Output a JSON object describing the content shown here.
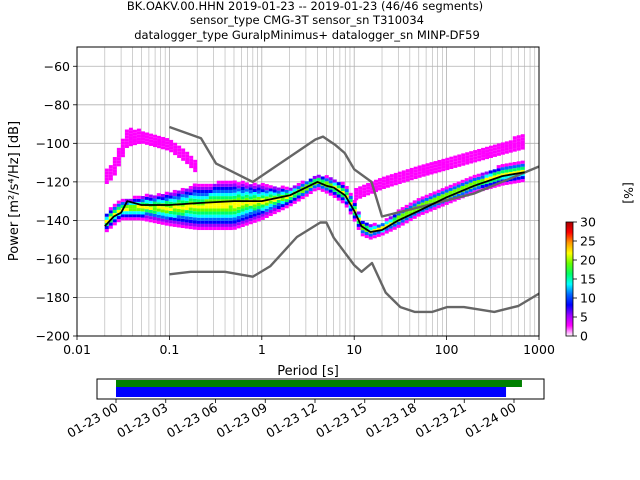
{
  "chart_data": {
    "type": "heatmap",
    "title_lines": [
      "BK.OAKV.00.HHN   2019-01-23 -- 2019-01-23  (46/46 segments)",
      "sensor_type CMG-3T sensor_sn T310034",
      "datalogger_type GuralpMinimus+ datalogger_sn MINP-DF59"
    ],
    "xlabel": "Period [s]",
    "ylabel": "Power [m²/s⁴/Hz] [dB]",
    "x_scale": "log",
    "xlim": [
      0.01,
      1000
    ],
    "ylim": [
      -200,
      -50
    ],
    "x_ticks": [
      {
        "value": 0.01,
        "label": "0.01"
      },
      {
        "value": 0.1,
        "label": "0.1"
      },
      {
        "value": 1,
        "label": "1"
      },
      {
        "value": 10,
        "label": "10"
      },
      {
        "value": 100,
        "label": "100"
      },
      {
        "value": 1000,
        "label": "1000"
      }
    ],
    "y_ticks": [
      {
        "value": -60,
        "label": "−60"
      },
      {
        "value": -80,
        "label": "−80"
      },
      {
        "value": -100,
        "label": "−100"
      },
      {
        "value": -120,
        "label": "−120"
      },
      {
        "value": -140,
        "label": "−140"
      },
      {
        "value": -160,
        "label": "−160"
      },
      {
        "value": -180,
        "label": "−180"
      },
      {
        "value": -200,
        "label": "−200"
      }
    ],
    "grid": true,
    "colorbar": {
      "label": "[%]",
      "range": [
        0,
        30
      ],
      "ticks": [
        {
          "value": 0,
          "label": "0"
        },
        {
          "value": 5,
          "label": "5"
        },
        {
          "value": 10,
          "label": "10"
        },
        {
          "value": 15,
          "label": "15"
        },
        {
          "value": 20,
          "label": "20"
        },
        {
          "value": 25,
          "label": "25"
        },
        {
          "value": 30,
          "label": "30"
        }
      ],
      "colors": [
        "#ffffff",
        "#ff00ff",
        "#9900ff",
        "#0000ff",
        "#0066ff",
        "#00ffff",
        "#00ff66",
        "#66ff00",
        "#ffff00",
        "#ff9900",
        "#ff0000",
        "#aa0000"
      ]
    },
    "lines": [
      {
        "role": "high-noise-model",
        "color": "#666666",
        "x": [
          0.1,
          0.22,
          0.32,
          0.8,
          3.8,
          4.6,
          6.3,
          7.9,
          10,
          15.4,
          20,
          200,
          1000
        ],
        "y": [
          -91.5,
          -97.4,
          -110.5,
          -120,
          -98,
          -96.5,
          -101,
          -105,
          -113.5,
          -120,
          -138,
          -126,
          -112
        ]
      },
      {
        "role": "low-noise-model",
        "color": "#666666",
        "x": [
          0.1,
          0.17,
          0.4,
          0.8,
          1.24,
          2.4,
          4.3,
          5,
          6,
          10,
          12,
          15.6,
          21.9,
          31.6,
          45,
          70,
          101,
          154,
          328,
          600,
          1000
        ],
        "y": [
          -168,
          -166.7,
          -166.7,
          -169.2,
          -163.7,
          -148.6,
          -141.1,
          -141.1,
          -149,
          -163.2,
          -166.7,
          -162.1,
          -177.5,
          -185,
          -187.5,
          -187.5,
          -185,
          -185,
          -187.5,
          -184.4,
          -178
        ]
      },
      {
        "role": "mode",
        "color": "#000000",
        "x": [
          0.02,
          0.025,
          0.03,
          0.035,
          0.05,
          0.1,
          0.2,
          0.5,
          1,
          2,
          3,
          4,
          5,
          6,
          8,
          10,
          12,
          15,
          20,
          30,
          50,
          100,
          200,
          400,
          700
        ],
        "y": [
          -143,
          -138,
          -136,
          -130,
          -132,
          -132,
          -131,
          -130,
          -130,
          -127,
          -123,
          -120,
          -122,
          -123,
          -127,
          -135,
          -143,
          -146,
          -145,
          -140,
          -135,
          -128,
          -122,
          -117,
          -115
        ]
      }
    ],
    "density_bands": [
      {
        "x": [
          0.02,
          0.025,
          0.03,
          0.05,
          0.1,
          0.2,
          0.5,
          1,
          2,
          3,
          4,
          5,
          6,
          8,
          10,
          12,
          15,
          20,
          30,
          50,
          100,
          200,
          400,
          700
        ],
        "lo": [
          -147,
          -143,
          -140,
          -140,
          -143,
          -145,
          -145,
          -140,
          -133,
          -128,
          -124,
          -126,
          -128,
          -132,
          -140,
          -148,
          -150,
          -148,
          -144,
          -138,
          -132,
          -126,
          -122,
          -120
        ],
        "hi": [
          -138,
          -133,
          -130,
          -128,
          -126,
          -122,
          -120,
          -122,
          -124,
          -120,
          -117,
          -118,
          -119,
          -122,
          -130,
          -140,
          -143,
          -142,
          -136,
          -130,
          -124,
          -118,
          -112,
          -110
        ]
      },
      {
        "x": [
          0.02,
          0.025,
          0.035,
          0.05,
          0.1,
          0.15,
          0.2
        ],
        "lo": [
          -122,
          -118,
          -102,
          -100,
          -104,
          -110,
          -116
        ],
        "hi": [
          -116,
          -110,
          -93,
          -94,
          -98,
          -104,
          -110
        ]
      },
      {
        "x": [
          10,
          20,
          50,
          100,
          200,
          400,
          700
        ],
        "lo": [
          -130,
          -124,
          -118,
          -114,
          -110,
          -106,
          -103
        ],
        "hi": [
          -124,
          -118,
          -112,
          -108,
          -104,
          -100,
          -96
        ]
      }
    ]
  },
  "timeline": {
    "ticks": [
      {
        "frac": 0.0,
        "label": "01-23 00"
      },
      {
        "frac": 0.125,
        "label": "01-23 03"
      },
      {
        "frac": 0.25,
        "label": "01-23 06"
      },
      {
        "frac": 0.375,
        "label": "01-23 09"
      },
      {
        "frac": 0.5,
        "label": "01-23 12"
      },
      {
        "frac": 0.625,
        "label": "01-23 15"
      },
      {
        "frac": 0.75,
        "label": "01-23 18"
      },
      {
        "frac": 0.875,
        "label": "01-23 21"
      },
      {
        "frac": 1.0,
        "label": "01-24 00"
      }
    ],
    "bars": [
      {
        "role": "data-availability",
        "color": "#008000",
        "start_frac": 0.0,
        "end_frac": 1.02
      },
      {
        "role": "psd-segments",
        "color": "#0000ff",
        "start_frac": 0.0,
        "end_frac": 0.98
      }
    ]
  }
}
